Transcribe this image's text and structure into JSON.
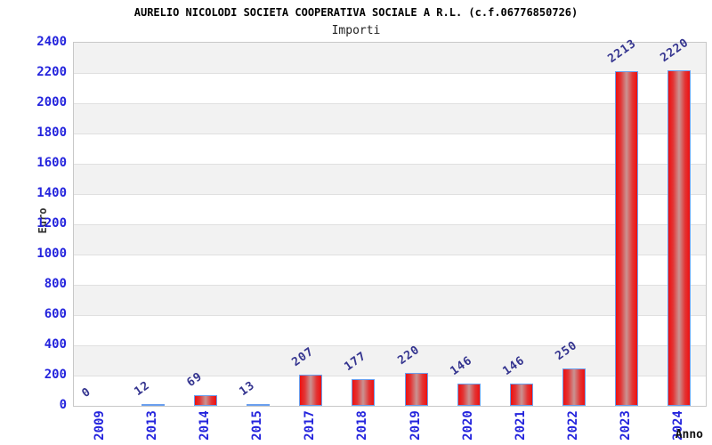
{
  "chart_data": {
    "type": "bar",
    "title": "AURELIO NICOLODI SOCIETA COOPERATIVA SOCIALE A R.L. (c.f.06776850726)",
    "subtitle": "Importi",
    "categories": [
      "2009",
      "2013",
      "2014",
      "2015",
      "2017",
      "2018",
      "2019",
      "2020",
      "2021",
      "2022",
      "2023",
      "2024"
    ],
    "values": [
      0,
      12,
      69,
      13,
      207,
      177,
      220,
      146,
      146,
      250,
      2213,
      2220
    ],
    "xlabel": "Anno",
    "ylabel": "Euro",
    "ylim": [
      0,
      2400
    ],
    "ytick_step": 200,
    "ytick_labels": [
      "0",
      "200",
      "400",
      "600",
      "800",
      "1000",
      "1200",
      "1400",
      "1600",
      "1800",
      "2000",
      "2200",
      "2400"
    ],
    "grid": true,
    "legend_position": "none",
    "band_pattern": "alternating 200-unit horizontal stripes, gray topmost",
    "colors": {
      "bar_edge": "#ee1010",
      "bar_mid": "#c99392",
      "bar_border": "#6a9fee",
      "tick_label": "#2424dd",
      "value_label": "#34348f",
      "band_gray": "#f2f2f2",
      "band_white": "#ffffff",
      "gridline": "#e0e0e0",
      "plot_border": "#c8c8c8",
      "title_color": "#000000"
    }
  }
}
